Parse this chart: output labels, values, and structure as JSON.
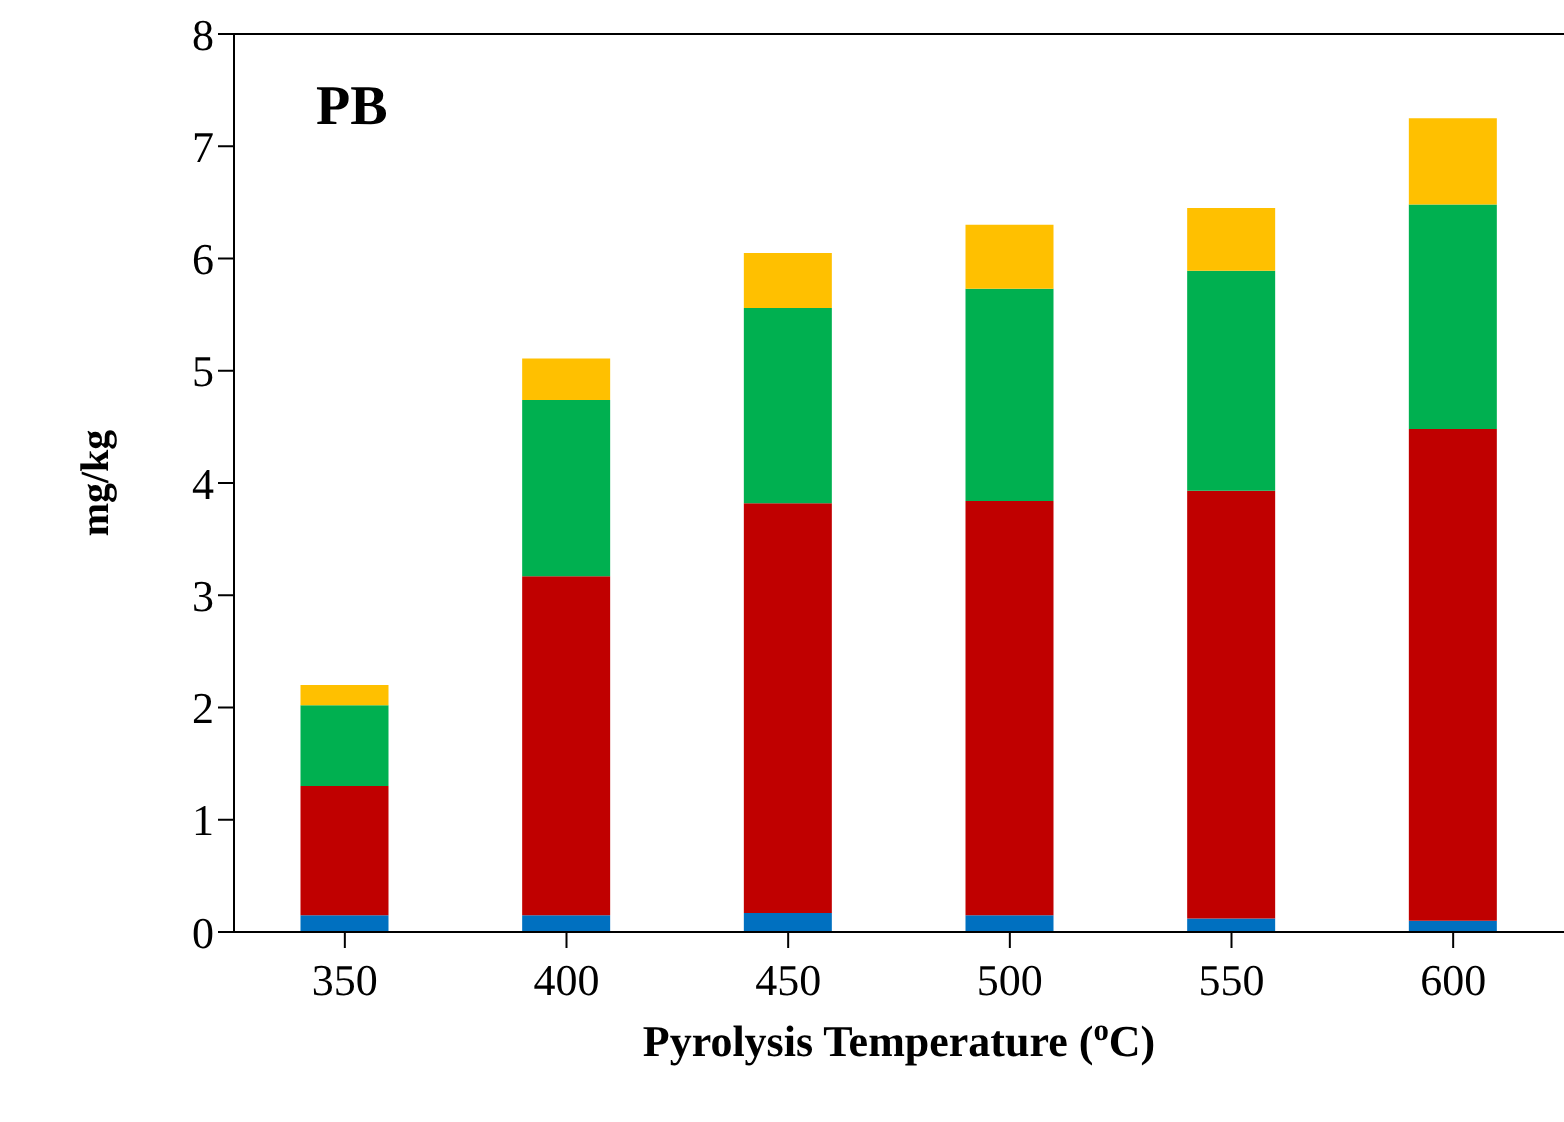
{
  "chart_data": {
    "type": "bar",
    "stacked": true,
    "categories": [
      "350",
      "400",
      "450",
      "500",
      "550",
      "600"
    ],
    "series": [
      {
        "color": "#0070c0",
        "values": [
          0.15,
          0.15,
          0.17,
          0.15,
          0.12,
          0.1
        ]
      },
      {
        "color": "#c00000",
        "values": [
          1.15,
          3.02,
          3.65,
          3.69,
          3.81,
          4.38
        ]
      },
      {
        "color": "#00b050",
        "values": [
          0.72,
          1.57,
          1.74,
          1.89,
          1.96,
          2.0
        ]
      },
      {
        "color": "#ffc000",
        "values": [
          0.18,
          0.37,
          0.49,
          0.57,
          0.56,
          0.77
        ]
      }
    ],
    "ylim": [
      0,
      8
    ],
    "yticks": [
      0,
      1,
      2,
      3,
      4,
      5,
      6,
      7,
      8
    ],
    "xlabel": "Pyrolysis Temperature ($^{o}$C)",
    "ylabel": "mg/kg",
    "annotations": [
      "PB"
    ],
    "grid": false,
    "legend": false
  }
}
